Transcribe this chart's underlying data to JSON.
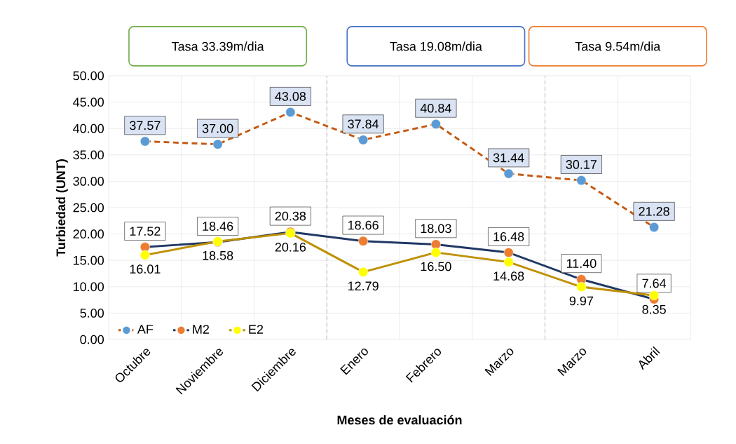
{
  "chart_data": {
    "type": "line",
    "xlabel": "Meses de evaluación",
    "ylabel": "Turbiedad (UNT)",
    "categories": [
      "Octubre",
      "Noviembre",
      "Diciembre",
      "Enero",
      "Febrero",
      "Marzo",
      "Marzo",
      "Abril"
    ],
    "series": [
      {
        "name": "AF",
        "color": "#c55a11",
        "colors": [
          "#5b9bd5",
          "#5b9bd5",
          "#5b9bd5",
          "#5b9bd5",
          "#5b9bd5",
          "#5b9bd5",
          "#5b9bd5",
          "#5b9bd5"
        ],
        "line_style": "dashed",
        "values": [
          37.57,
          37.0,
          43.08,
          37.84,
          40.84,
          31.44,
          30.17,
          21.28
        ],
        "value_labels": [
          "37.57",
          "37.00",
          "43.08",
          "37.84",
          "40.84",
          "31.44",
          "30.17",
          "21.28"
        ]
      },
      {
        "name": "M2",
        "color": "#1f3864",
        "colors": [
          "#ed7d31",
          "#ed7d31",
          "#ed7d31",
          "#ed7d31",
          "#ed7d31",
          "#ed7d31",
          "#ed7d31",
          "#ed7d31"
        ],
        "line_style": "solid",
        "values": [
          17.52,
          18.46,
          20.38,
          18.66,
          18.03,
          16.48,
          11.4,
          7.64
        ],
        "value_labels": [
          "17.52",
          "18.46",
          "20.38",
          "18.66",
          "18.03",
          "16.48",
          "11.40",
          "7.64"
        ]
      },
      {
        "name": "E2",
        "color": "#bf9000",
        "colors": [
          "#ffff00",
          "#ffff00",
          "#ffff00",
          "#ffff00",
          "#ffff00",
          "#ffff00",
          "#ffff00",
          "#ffff00"
        ],
        "line_style": "solid",
        "values": [
          16.01,
          18.58,
          20.16,
          12.79,
          16.5,
          14.68,
          9.97,
          8.35
        ],
        "value_labels": [
          "16.01",
          "18.58",
          "20.16",
          "12.79",
          "16.50",
          "14.68",
          "9.97",
          "8.35"
        ]
      }
    ],
    "ylim": [
      0,
      50
    ],
    "yticks": [
      {
        "value": 0,
        "label": "0.00"
      },
      {
        "value": 5,
        "label": "5.00"
      },
      {
        "value": 10,
        "label": "10.00"
      },
      {
        "value": 15,
        "label": "15.00"
      },
      {
        "value": 20,
        "label": "20.00"
      },
      {
        "value": 25,
        "label": "25.00"
      },
      {
        "value": 30,
        "label": "30.00"
      },
      {
        "value": 35,
        "label": "35.00"
      },
      {
        "value": 40,
        "label": "40.00"
      },
      {
        "value": 45,
        "label": "45.00"
      },
      {
        "value": 50,
        "label": "50.00"
      }
    ],
    "annotations": [
      "Tasa 33.39m/dia",
      "Tasa 19.08m/dia",
      "Tasa 9.54m/dia"
    ],
    "grid": true,
    "legend": "bottom left",
    "marker": "circle"
  }
}
